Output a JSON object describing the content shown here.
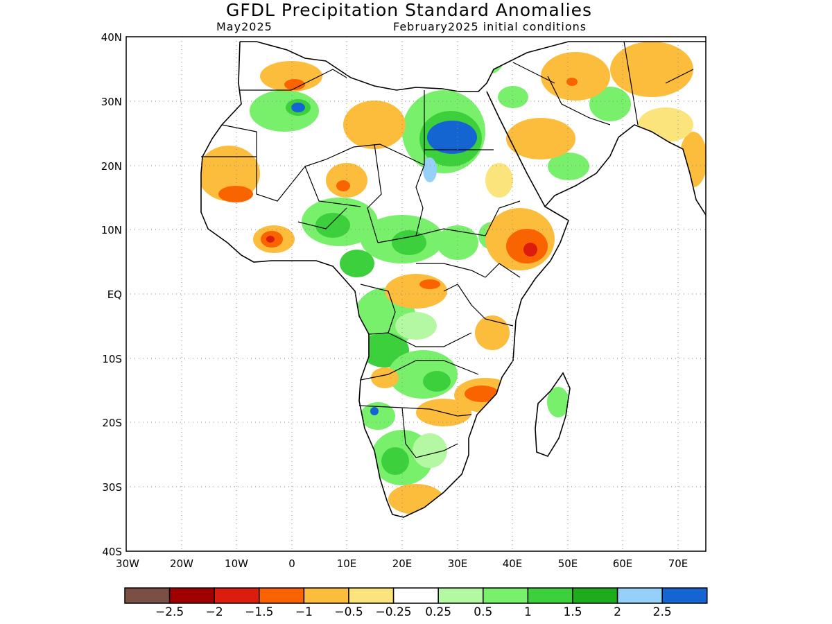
{
  "header": {
    "title": "GFDL Precipitation Standard Anomalies",
    "forecast_month": "May2025",
    "initial_conditions": "February2025 initial conditions"
  },
  "map": {
    "lon_range": [
      -30,
      75
    ],
    "lat_range": [
      -40,
      40
    ],
    "lat_labels": [
      "40N",
      "30N",
      "20N",
      "10N",
      "EQ",
      "10S",
      "20S",
      "30S",
      "40S"
    ],
    "lon_labels": [
      "30W",
      "20W",
      "10W",
      "0",
      "10E",
      "20E",
      "30E",
      "40E",
      "50E",
      "60E",
      "70E"
    ],
    "grid": "dotted"
  },
  "legend": {
    "colors": [
      "#7a5044",
      "#a00000",
      "#dc1c0c",
      "#fa6400",
      "#fcbc3c",
      "#fce47c",
      "#ffffff",
      "#b4f8a4",
      "#78f06c",
      "#3cd03c",
      "#1cac1c",
      "#94d0f8",
      "#1464d2"
    ],
    "labels": [
      "−2.5",
      "−2",
      "−1.5",
      "−1",
      "−0.5",
      "−0.25",
      "0.25",
      "0.5",
      "1",
      "1.5",
      "2",
      "2.5"
    ]
  },
  "anomaly_regions": [
    {
      "name": "ethiopia-dry",
      "value": -1.5,
      "lon": 42,
      "lat": 8
    },
    {
      "name": "mozambique-dry",
      "value": -1.5,
      "lon": 35,
      "lat": -17
    },
    {
      "name": "ghana-dry",
      "value": -1.5,
      "lon": -3,
      "lat": 9
    },
    {
      "name": "egypt-wet",
      "value": 2.5,
      "lon": 30,
      "lat": 25
    },
    {
      "name": "algeria-wet",
      "value": 2.5,
      "lon": 1,
      "lat": 29
    }
  ]
}
